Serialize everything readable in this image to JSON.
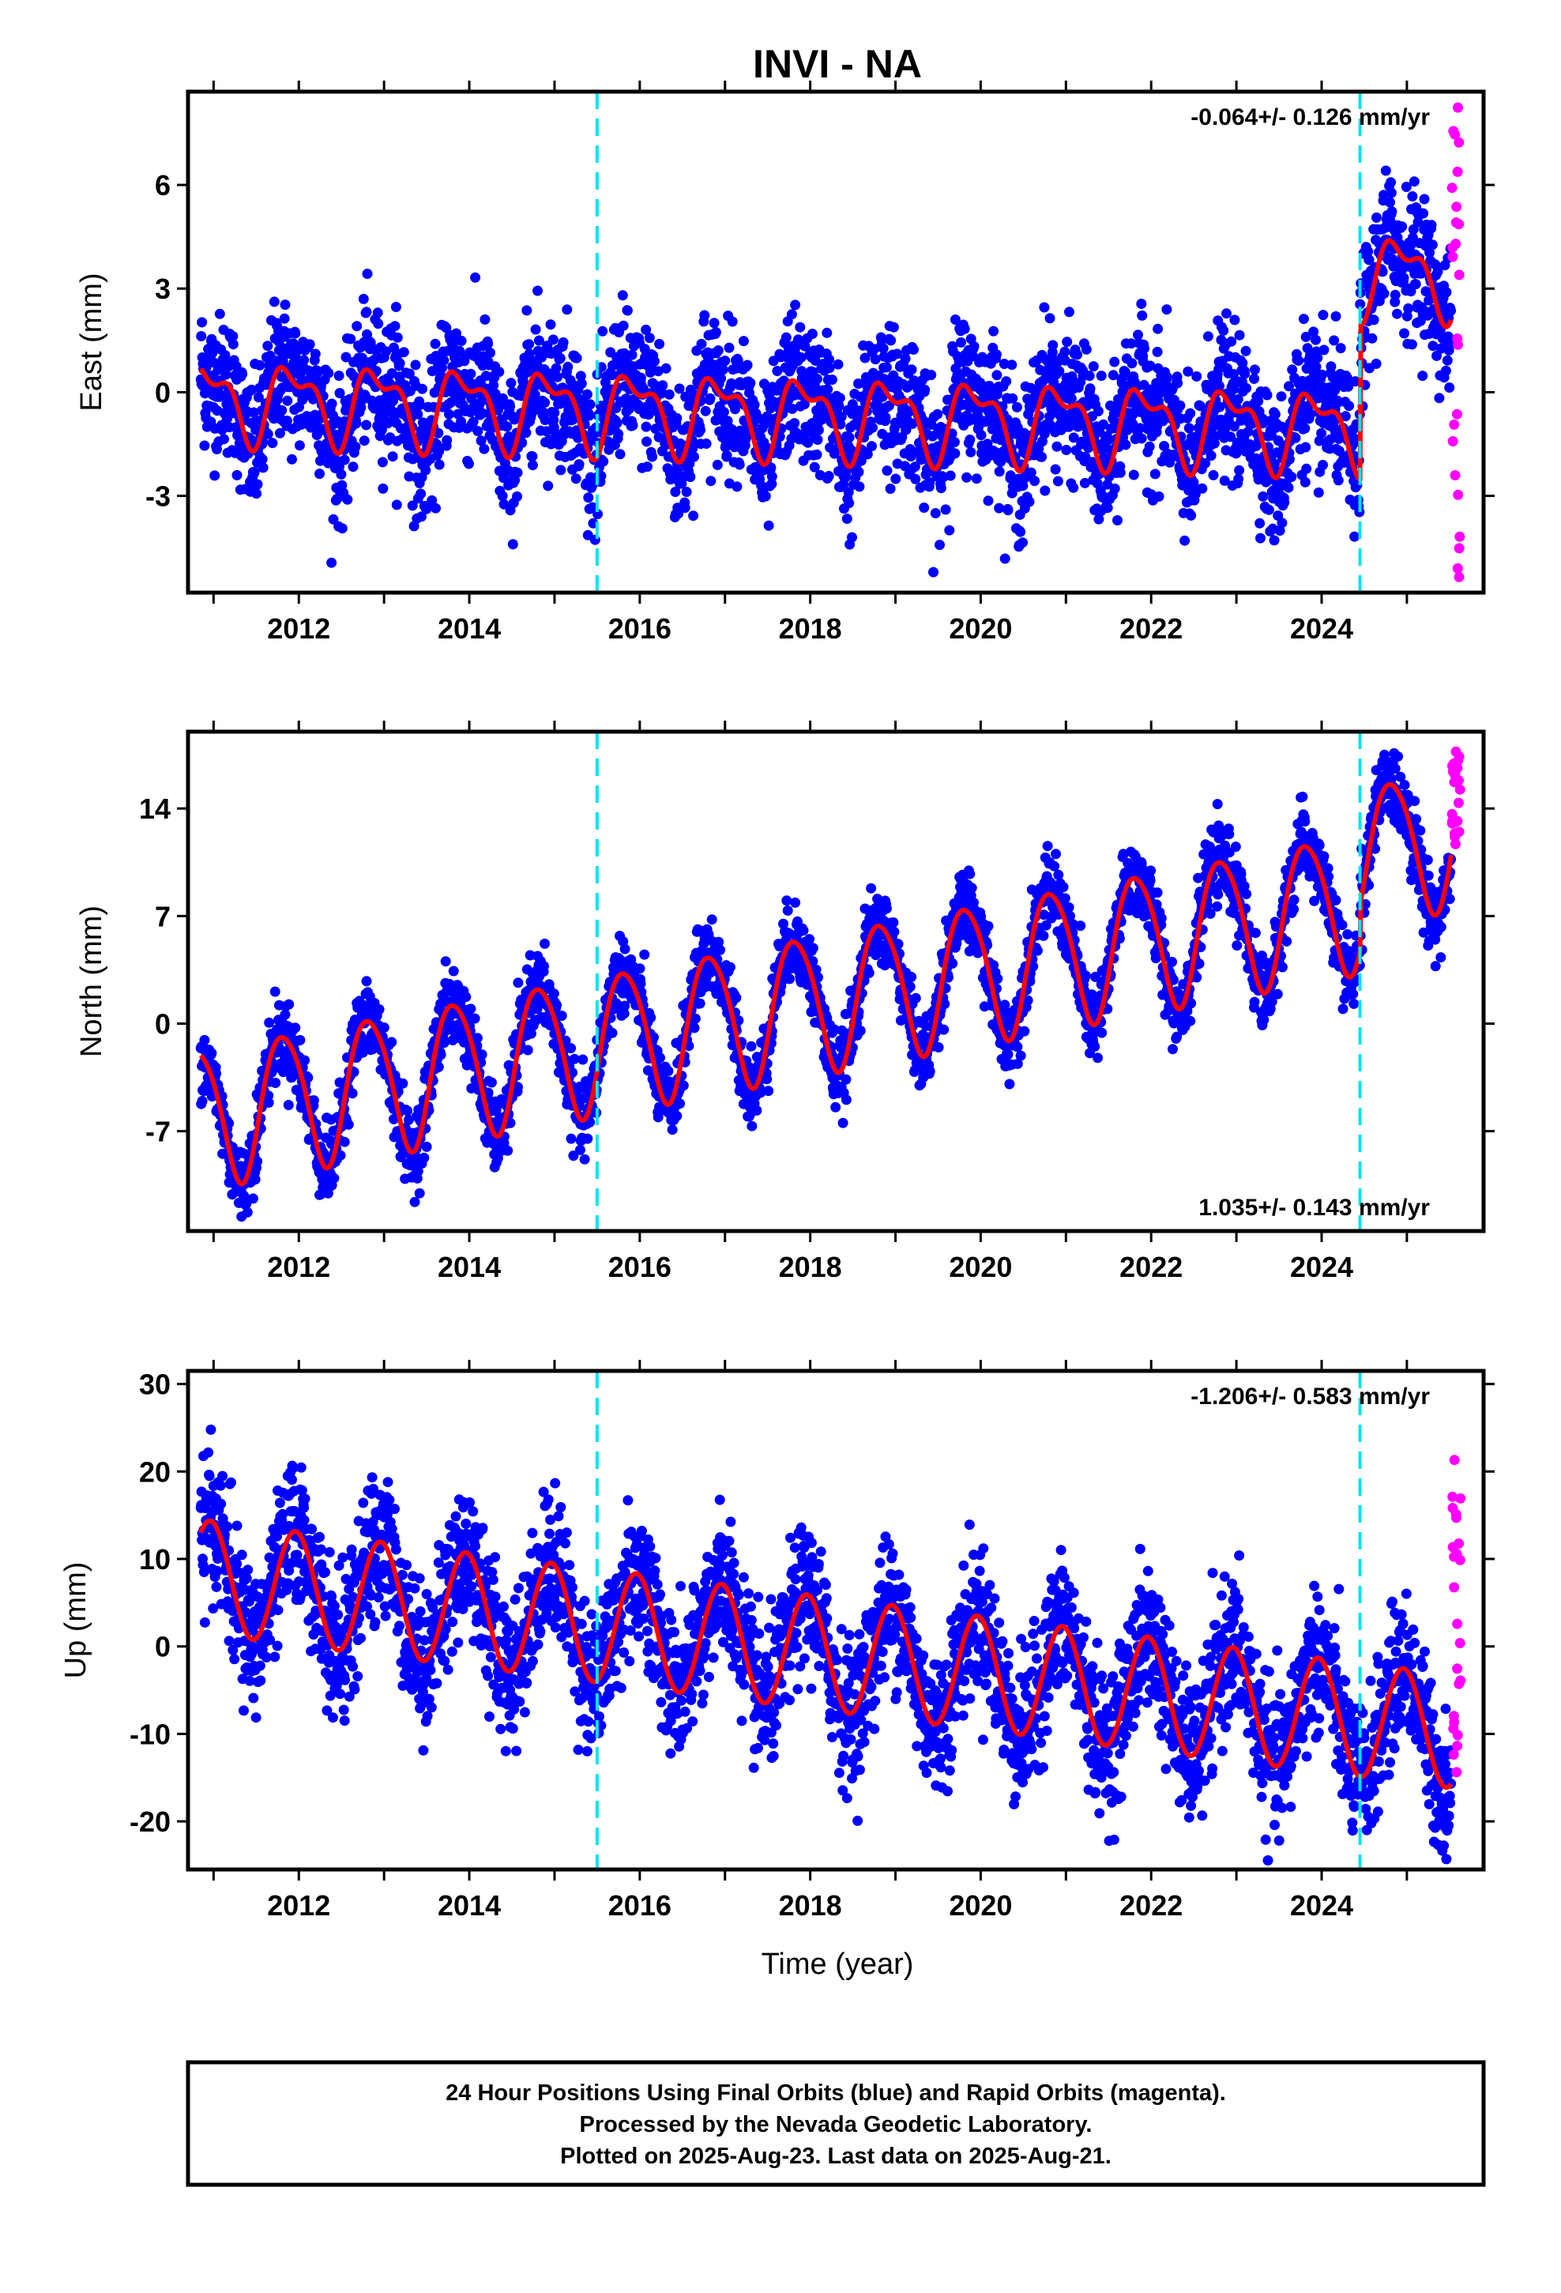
{
  "title": "INVI - NA",
  "xlabel": "Time (year)",
  "footer": {
    "line1": "24 Hour Positions Using Final Orbits (blue) and Rapid Orbits (magenta).",
    "line2": "Processed by the Nevada Geodetic Laboratory.",
    "line3": "Plotted on 2025-Aug-23. Last data on 2025-Aug-21."
  },
  "colors": {
    "final": "#0000ff",
    "rapid": "#ff00ff",
    "model": "#ff0000",
    "event": "#00e5ee"
  },
  "chart_data": [
    {
      "type": "scatter",
      "ylabel": "East (mm)",
      "rate_text": "-0.064+/- 0.126 mm/yr",
      "xlim": [
        2010.7,
        2025.9
      ],
      "ylim": [
        -5.8,
        8.7
      ],
      "yticks": [
        -3,
        0,
        3,
        6
      ],
      "xticks": [
        2012,
        2014,
        2016,
        2018,
        2020,
        2022,
        2024
      ],
      "event_lines": [
        2015.5,
        2024.45
      ],
      "model": {
        "base_start": -0.2,
        "trend": -0.064,
        "annual_amp": 1.0,
        "semi_amp": 0.5,
        "phase": 0.68,
        "offset_at_event2": 4.5,
        "noise": 1.0
      },
      "rapid": {
        "x_start": 2025.53,
        "x_end": 2025.63,
        "y_min": -5.5,
        "y_max": 8.4
      }
    },
    {
      "type": "scatter",
      "ylabel": "North (mm)",
      "rate_text": "1.035+/- 0.143 mm/yr",
      "xlim": [
        2010.7,
        2025.9
      ],
      "ylim": [
        -13.5,
        19
      ],
      "yticks": [
        -7,
        0,
        7,
        14
      ],
      "xticks": [
        2012,
        2014,
        2016,
        2018,
        2020,
        2022,
        2024
      ],
      "event_lines": [
        2015.5,
        2024.45
      ],
      "model": {
        "base_start": -6,
        "trend": 1.035,
        "annual_amp": 4.5,
        "semi_amp": 0.5,
        "phase": 0.57,
        "offset_at_event2": 3.0,
        "noise": 1.2
      },
      "rapid": {
        "x_start": 2025.53,
        "x_end": 2025.63,
        "y_min": 11.5,
        "y_max": 17.8
      }
    },
    {
      "type": "scatter",
      "ylabel": "Up (mm)",
      "rate_text": "-1.206+/- 0.583 mm/yr",
      "xlim": [
        2010.7,
        2025.9
      ],
      "ylim": [
        -25.5,
        31.5
      ],
      "yticks": [
        -20,
        -10,
        0,
        10,
        20,
        30
      ],
      "xticks": [
        2012,
        2014,
        2016,
        2018,
        2020,
        2022,
        2024
      ],
      "event_lines": [
        2015.5,
        2024.45
      ],
      "model": {
        "base_start": 8,
        "trend": -1.206,
        "annual_amp": 6.5,
        "semi_amp": 0.0,
        "phase": 0.71,
        "offset_at_event2": 0.0,
        "noise": 4.0
      },
      "rapid": {
        "x_start": 2025.53,
        "x_end": 2025.63,
        "y_min": -16,
        "y_max": 22
      }
    }
  ]
}
